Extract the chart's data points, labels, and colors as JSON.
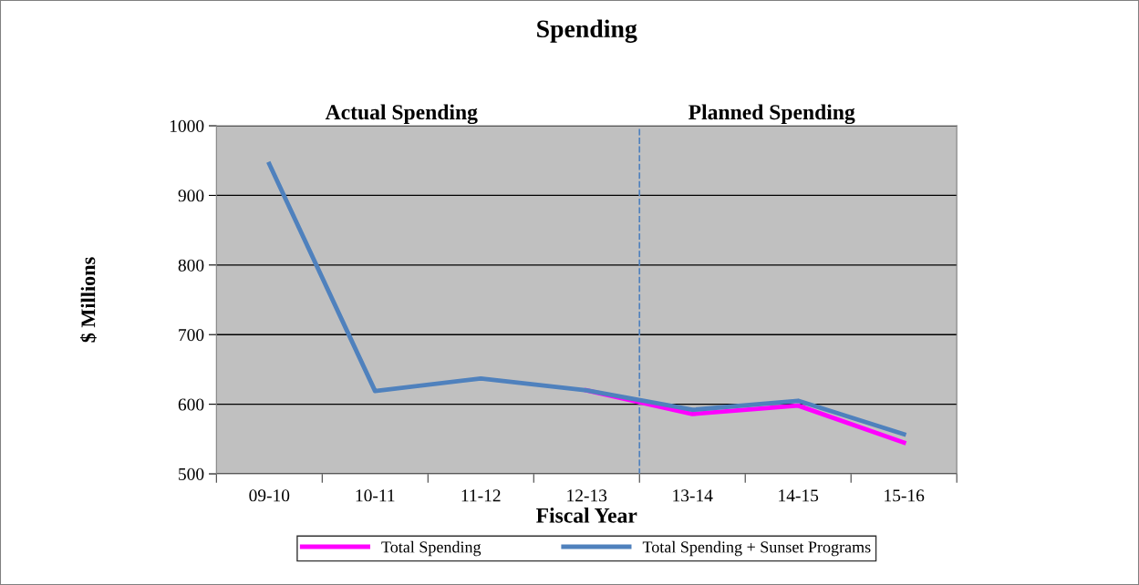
{
  "chart_data": {
    "type": "line",
    "title": "Spending",
    "xlabel": "Fiscal Year",
    "ylabel": "$ Millions",
    "categories": [
      "09-10",
      "10-11",
      "11-12",
      "12-13",
      "13-14",
      "14-15",
      "15-16"
    ],
    "series": [
      {
        "name": "Total Spending",
        "color": "#ff00ff",
        "values": [
          null,
          null,
          null,
          620,
          586,
          598,
          545
        ]
      },
      {
        "name": "Total Spending + Sunset Programs",
        "color": "#4f81bd",
        "values": [
          945,
          619,
          637,
          620,
          592,
          605,
          557
        ]
      }
    ],
    "ylim": [
      500,
      1000
    ],
    "yticks": [
      500,
      600,
      700,
      800,
      900,
      1000
    ],
    "grid": "y",
    "legend": "bottom",
    "marker": "none",
    "line_style": "solid",
    "annotations": [
      "Actual Spending",
      "Planned Spending"
    ]
  }
}
